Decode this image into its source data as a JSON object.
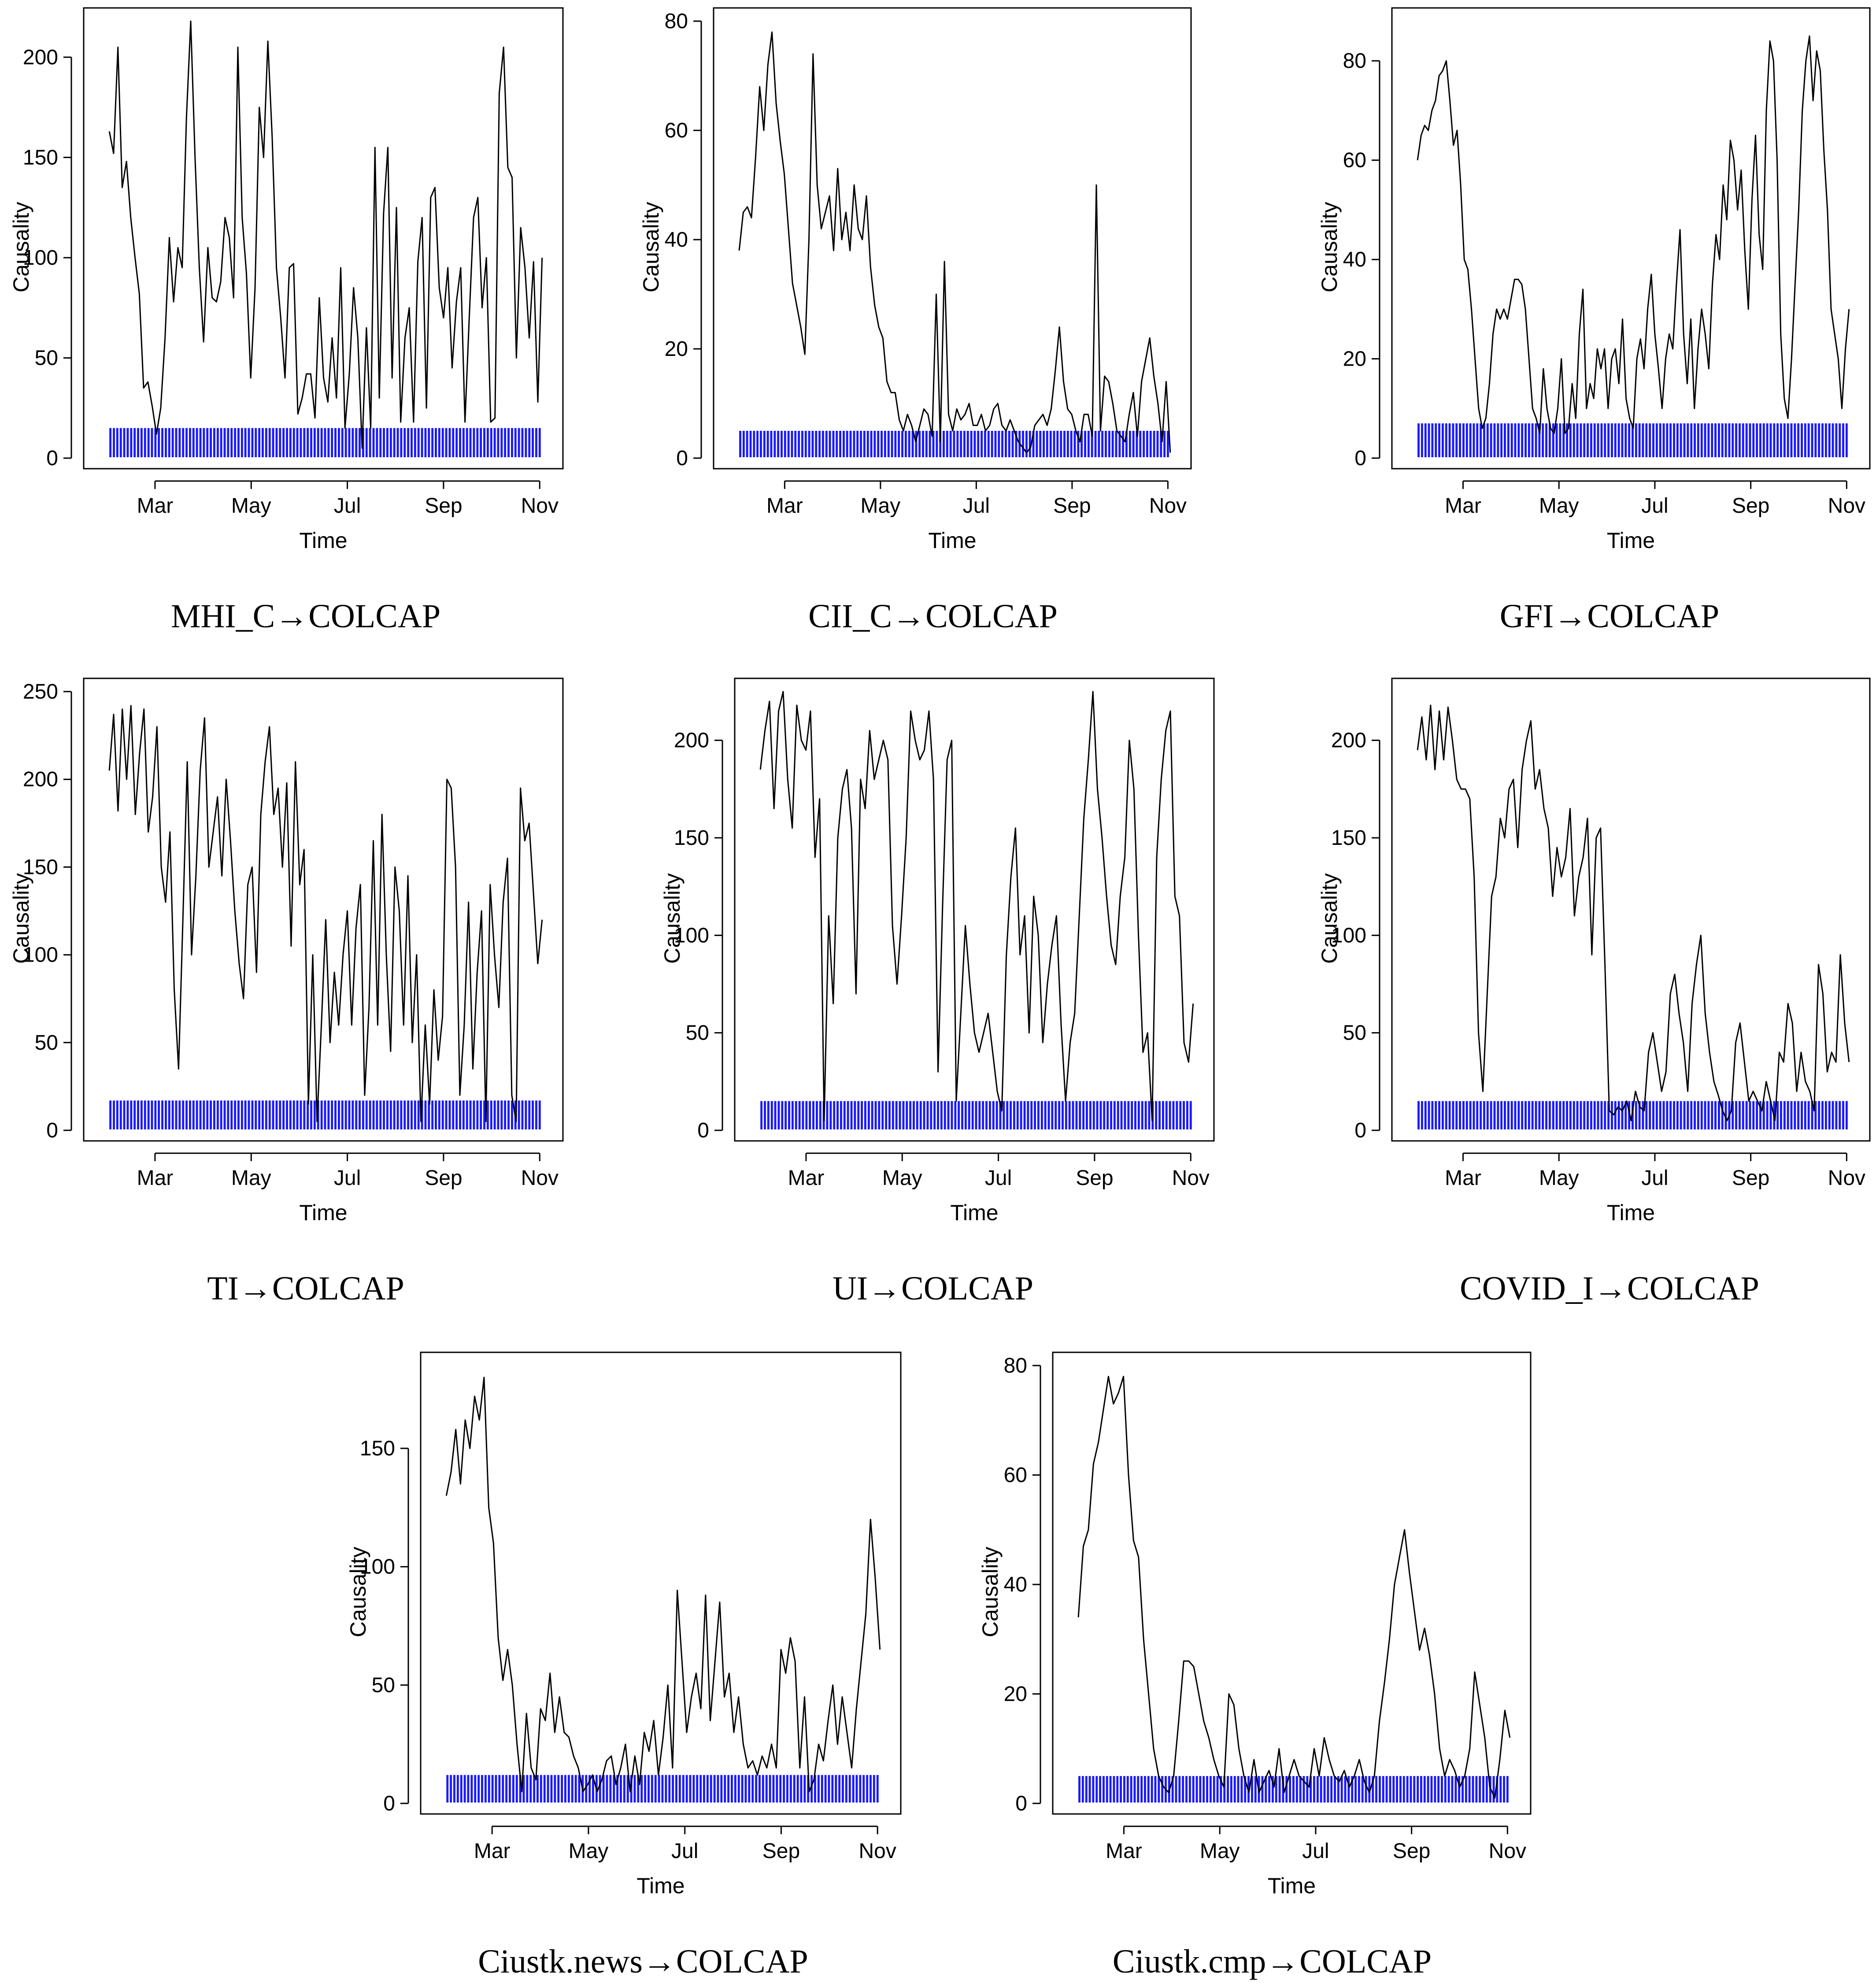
{
  "figure": {
    "colors": {
      "line": "#000000",
      "significance": "#1a1aff",
      "frame": "#000000"
    }
  },
  "chart_data": [
    {
      "type": "line",
      "caption": "MHI_C→COLCAP",
      "xlabel": "Time",
      "ylabel": "Causality",
      "xlim": [
        1.7,
        11.3
      ],
      "ylim": [
        0,
        218
      ],
      "xticks": [
        {
          "label": "Mar",
          "value": 3
        },
        {
          "label": "May",
          "value": 5
        },
        {
          "label": "Jul",
          "value": 7
        },
        {
          "label": "Sep",
          "value": 9
        },
        {
          "label": "Nov",
          "value": 11
        }
      ],
      "yticks": [
        0,
        50,
        100,
        150,
        200
      ],
      "sig_height": 15,
      "series": [
        {
          "name": "Causality",
          "values": [
            163,
            152,
            205,
            135,
            148,
            120,
            100,
            82,
            35,
            38,
            26,
            12,
            25,
            60,
            110,
            78,
            105,
            95,
            170,
            218,
            150,
            95,
            58,
            105,
            80,
            78,
            88,
            120,
            110,
            80,
            205,
            120,
            92,
            40,
            85,
            175,
            150,
            208,
            160,
            95,
            70,
            40,
            95,
            97,
            22,
            30,
            42,
            42,
            20,
            80,
            40,
            28,
            60,
            30,
            95,
            15,
            42,
            85,
            60,
            5,
            65,
            15,
            155,
            30,
            122,
            155,
            40,
            125,
            18,
            60,
            75,
            18,
            98,
            120,
            25,
            130,
            135,
            85,
            70,
            95,
            45,
            78,
            95,
            18,
            70,
            120,
            130,
            75,
            100,
            18,
            20,
            182,
            205,
            145,
            140,
            50,
            115,
            95,
            60,
            98,
            28,
            100
          ]
        }
      ]
    },
    {
      "type": "line",
      "caption": "CII_C→COLCAP",
      "xlabel": "Time",
      "ylabel": "Causality",
      "xlim": [
        1.7,
        11.3
      ],
      "ylim": [
        0,
        80
      ],
      "xticks": [
        {
          "label": "Mar",
          "value": 3
        },
        {
          "label": "May",
          "value": 5
        },
        {
          "label": "Jul",
          "value": 7
        },
        {
          "label": "Sep",
          "value": 9
        },
        {
          "label": "Nov",
          "value": 11
        }
      ],
      "yticks": [
        0,
        20,
        40,
        60,
        80
      ],
      "sig_height": 5,
      "series": [
        {
          "name": "Causality",
          "values": [
            38,
            45,
            46,
            44,
            55,
            68,
            60,
            72,
            78,
            65,
            58,
            52,
            42,
            32,
            28,
            24,
            19,
            40,
            74,
            50,
            42,
            45,
            48,
            38,
            53,
            40,
            45,
            38,
            50,
            42,
            40,
            48,
            35,
            28,
            24,
            22,
            14,
            12,
            12,
            7,
            5,
            8,
            6,
            3,
            6,
            9,
            8,
            4,
            30,
            3,
            36,
            8,
            5,
            9,
            7,
            8,
            10,
            6,
            6,
            8,
            5,
            6,
            9,
            10,
            6,
            5,
            7,
            5,
            3,
            2,
            1,
            2,
            6,
            7,
            8,
            6,
            9,
            16,
            24,
            14,
            9,
            8,
            5,
            3,
            8,
            8,
            4,
            50,
            5,
            15,
            14,
            10,
            5,
            4,
            3,
            8,
            12,
            4,
            14,
            18,
            22,
            15,
            10,
            3,
            14,
            1
          ]
        }
      ]
    },
    {
      "type": "line",
      "caption": "GFI→COLCAP",
      "xlabel": "Time",
      "ylabel": "Causality",
      "xlim": [
        1.7,
        11.3
      ],
      "ylim": [
        0,
        88
      ],
      "xticks": [
        {
          "label": "Mar",
          "value": 3
        },
        {
          "label": "May",
          "value": 5
        },
        {
          "label": "Jul",
          "value": 7
        },
        {
          "label": "Sep",
          "value": 9
        },
        {
          "label": "Nov",
          "value": 11
        }
      ],
      "yticks": [
        0,
        20,
        40,
        60,
        80
      ],
      "sig_height": 7,
      "series": [
        {
          "name": "Causality",
          "values": [
            60,
            65,
            67,
            66,
            70,
            72,
            77,
            78,
            80,
            72,
            63,
            66,
            55,
            40,
            38,
            30,
            20,
            10,
            6,
            8,
            15,
            25,
            30,
            28,
            30,
            28,
            32,
            36,
            36,
            35,
            30,
            20,
            10,
            8,
            5,
            18,
            10,
            6,
            5,
            10,
            20,
            5,
            6,
            15,
            8,
            25,
            34,
            10,
            15,
            12,
            22,
            18,
            22,
            10,
            20,
            22,
            15,
            28,
            12,
            8,
            6,
            20,
            24,
            18,
            30,
            37,
            25,
            18,
            10,
            20,
            25,
            22,
            35,
            46,
            25,
            15,
            28,
            10,
            22,
            30,
            25,
            18,
            35,
            45,
            40,
            55,
            48,
            64,
            60,
            50,
            58,
            42,
            30,
            52,
            65,
            45,
            38,
            70,
            84,
            80,
            60,
            25,
            12,
            8,
            20,
            35,
            50,
            70,
            80,
            85,
            72,
            82,
            78,
            62,
            50,
            30,
            25,
            20,
            10,
            22,
            30
          ]
        }
      ]
    },
    {
      "type": "line",
      "caption": "TI→COLCAP",
      "xlabel": "Time",
      "ylabel": "Causality",
      "xlim": [
        1.7,
        11.3
      ],
      "ylim": [
        0,
        250
      ],
      "xticks": [
        {
          "label": "Mar",
          "value": 3
        },
        {
          "label": "May",
          "value": 5
        },
        {
          "label": "Jul",
          "value": 7
        },
        {
          "label": "Sep",
          "value": 9
        },
        {
          "label": "Nov",
          "value": 11
        }
      ],
      "yticks": [
        0,
        50,
        100,
        150,
        200,
        250
      ],
      "sig_height": 17,
      "series": [
        {
          "name": "Causality",
          "values": [
            205,
            237,
            182,
            240,
            200,
            242,
            180,
            215,
            240,
            170,
            190,
            230,
            150,
            130,
            170,
            80,
            35,
            120,
            210,
            100,
            145,
            205,
            235,
            150,
            170,
            190,
            145,
            200,
            165,
            125,
            95,
            75,
            140,
            150,
            90,
            180,
            210,
            230,
            180,
            195,
            150,
            198,
            105,
            210,
            140,
            160,
            15,
            100,
            5,
            60,
            120,
            50,
            90,
            60,
            100,
            125,
            60,
            115,
            140,
            20,
            70,
            165,
            60,
            180,
            100,
            45,
            150,
            125,
            60,
            145,
            50,
            100,
            5,
            60,
            15,
            80,
            40,
            65,
            200,
            195,
            150,
            20,
            60,
            130,
            35,
            90,
            125,
            5,
            140,
            100,
            70,
            130,
            155,
            20,
            5,
            195,
            165,
            175,
            135,
            95,
            120
          ]
        }
      ]
    },
    {
      "type": "line",
      "caption": "UI→COLCAP",
      "xlabel": "Time",
      "ylabel": "Causality",
      "xlim": [
        1.7,
        11.3
      ],
      "ylim": [
        0,
        225
      ],
      "xticks": [
        {
          "label": "Mar",
          "value": 3
        },
        {
          "label": "May",
          "value": 5
        },
        {
          "label": "Jul",
          "value": 7
        },
        {
          "label": "Sep",
          "value": 9
        },
        {
          "label": "Nov",
          "value": 11
        }
      ],
      "yticks": [
        0,
        50,
        100,
        150,
        200
      ],
      "sig_height": 15,
      "series": [
        {
          "name": "Causality",
          "values": [
            185,
            205,
            220,
            165,
            215,
            225,
            180,
            155,
            218,
            200,
            195,
            215,
            140,
            170,
            5,
            110,
            65,
            150,
            175,
            185,
            155,
            70,
            180,
            165,
            205,
            180,
            190,
            200,
            190,
            105,
            75,
            110,
            150,
            215,
            200,
            190,
            195,
            215,
            180,
            30,
            115,
            190,
            200,
            15,
            60,
            105,
            75,
            50,
            40,
            50,
            60,
            40,
            20,
            10,
            90,
            130,
            155,
            90,
            110,
            50,
            120,
            100,
            45,
            75,
            95,
            110,
            55,
            15,
            45,
            60,
            110,
            160,
            190,
            225,
            175,
            150,
            120,
            95,
            85,
            120,
            140,
            200,
            175,
            100,
            40,
            50,
            5,
            140,
            180,
            205,
            215,
            120,
            110,
            45,
            35,
            65
          ]
        }
      ]
    },
    {
      "type": "line",
      "caption": "COVID_I→COLCAP",
      "xlabel": "Time",
      "ylabel": "Causality",
      "xlim": [
        1.7,
        11.3
      ],
      "ylim": [
        0,
        225
      ],
      "xticks": [
        {
          "label": "Mar",
          "value": 3
        },
        {
          "label": "May",
          "value": 5
        },
        {
          "label": "Jul",
          "value": 7
        },
        {
          "label": "Sep",
          "value": 9
        },
        {
          "label": "Nov",
          "value": 11
        }
      ],
      "yticks": [
        0,
        50,
        100,
        150,
        200
      ],
      "sig_height": 15,
      "series": [
        {
          "name": "Causality",
          "values": [
            195,
            212,
            190,
            218,
            185,
            215,
            190,
            217,
            200,
            180,
            175,
            175,
            170,
            130,
            50,
            20,
            70,
            120,
            130,
            160,
            150,
            175,
            180,
            145,
            185,
            200,
            210,
            175,
            185,
            165,
            155,
            120,
            145,
            130,
            140,
            165,
            110,
            130,
            140,
            160,
            90,
            150,
            155,
            85,
            10,
            8,
            12,
            10,
            15,
            5,
            20,
            12,
            10,
            40,
            50,
            35,
            20,
            30,
            70,
            80,
            60,
            45,
            20,
            65,
            85,
            100,
            60,
            40,
            25,
            18,
            10,
            5,
            10,
            45,
            55,
            35,
            15,
            20,
            15,
            10,
            25,
            15,
            5,
            40,
            35,
            65,
            55,
            20,
            40,
            25,
            20,
            10,
            85,
            70,
            30,
            40,
            35,
            90,
            55,
            35
          ]
        }
      ]
    },
    {
      "type": "line",
      "caption": "Ciustk.news→COLCAP",
      "xlabel": "Time",
      "ylabel": "Causality",
      "xlim": [
        1.7,
        11.3
      ],
      "ylim": [
        0,
        185
      ],
      "xticks": [
        {
          "label": "Mar",
          "value": 3
        },
        {
          "label": "May",
          "value": 5
        },
        {
          "label": "Jul",
          "value": 7
        },
        {
          "label": "Sep",
          "value": 9
        },
        {
          "label": "Nov",
          "value": 11
        }
      ],
      "yticks": [
        0,
        50,
        100,
        150
      ],
      "sig_height": 12,
      "series": [
        {
          "name": "Causality",
          "values": [
            130,
            140,
            158,
            135,
            162,
            150,
            172,
            162,
            180,
            125,
            110,
            70,
            52,
            65,
            50,
            25,
            5,
            38,
            15,
            10,
            40,
            35,
            55,
            30,
            45,
            30,
            28,
            20,
            15,
            5,
            8,
            12,
            5,
            10,
            18,
            20,
            8,
            15,
            25,
            5,
            20,
            8,
            30,
            22,
            35,
            12,
            28,
            50,
            15,
            90,
            60,
            30,
            45,
            55,
            40,
            88,
            35,
            60,
            85,
            45,
            55,
            30,
            45,
            25,
            15,
            18,
            12,
            20,
            15,
            25,
            15,
            65,
            55,
            70,
            60,
            15,
            45,
            5,
            10,
            25,
            18,
            35,
            50,
            25,
            45,
            30,
            15,
            40,
            60,
            80,
            120,
            95,
            65
          ]
        }
      ]
    },
    {
      "type": "line",
      "caption": "Ciustk.cmp→COLCAP",
      "xlabel": "Time",
      "ylabel": "Causality",
      "xlim": [
        1.7,
        11.3
      ],
      "ylim": [
        0,
        80
      ],
      "xticks": [
        {
          "label": "Mar",
          "value": 3
        },
        {
          "label": "May",
          "value": 5
        },
        {
          "label": "Jul",
          "value": 7
        },
        {
          "label": "Sep",
          "value": 9
        },
        {
          "label": "Nov",
          "value": 11
        }
      ],
      "yticks": [
        0,
        20,
        40,
        60,
        80
      ],
      "sig_height": 5,
      "series": [
        {
          "name": "Causality",
          "values": [
            34,
            47,
            50,
            62,
            66,
            72,
            78,
            73,
            75,
            78,
            60,
            48,
            45,
            30,
            20,
            10,
            5,
            3,
            2,
            5,
            15,
            26,
            26,
            25,
            20,
            15,
            12,
            8,
            5,
            3,
            20,
            18,
            10,
            5,
            2,
            8,
            2,
            4,
            6,
            3,
            10,
            2,
            5,
            8,
            5,
            4,
            3,
            10,
            5,
            12,
            8,
            5,
            4,
            6,
            3,
            5,
            8,
            4,
            2,
            5,
            15,
            22,
            30,
            40,
            45,
            50,
            42,
            35,
            28,
            32,
            27,
            20,
            10,
            5,
            8,
            6,
            3,
            5,
            10,
            24,
            18,
            12,
            3,
            1,
            8,
            17,
            12
          ]
        }
      ]
    }
  ]
}
